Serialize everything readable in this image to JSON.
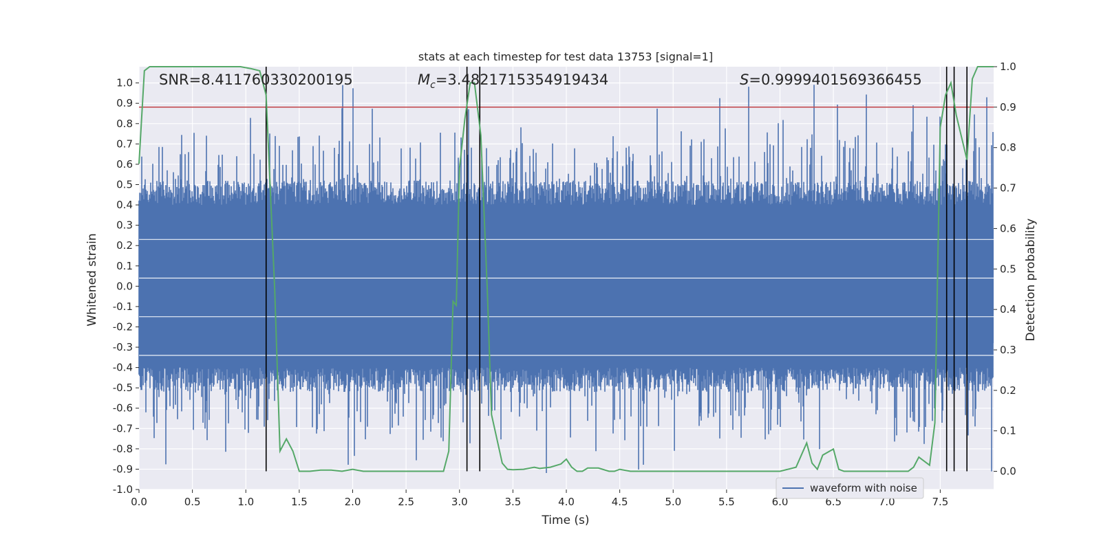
{
  "chart_data": {
    "type": "line",
    "title": "stats at each timestep for test data 13753 [signal=1]",
    "xlabel": "Time (s)",
    "ylabel_left": "Whitened strain",
    "ylabel_right": "Detection probability",
    "xlim": [
      0.0,
      8.0
    ],
    "ylim_left": [
      -1.0,
      1.08
    ],
    "ylim_right": [
      -0.045,
      1.0
    ],
    "x_ticks": [
      "0.0",
      "0.5",
      "1.0",
      "1.5",
      "2.0",
      "2.5",
      "3.0",
      "3.5",
      "4.0",
      "4.5",
      "5.0",
      "5.5",
      "6.0",
      "6.5",
      "7.0",
      "7.5"
    ],
    "y_ticks_left": [
      "1.0",
      "0.9",
      "0.8",
      "0.7",
      "0.6",
      "0.5",
      "0.4",
      "0.3",
      "0.2",
      "0.1",
      "0.0",
      "-0.1",
      "-0.2",
      "-0.3",
      "-0.4",
      "-0.5",
      "-0.6",
      "-0.7",
      "-0.8",
      "-0.9",
      "-1.0"
    ],
    "y_ticks_right": [
      "1.0",
      "0.9",
      "0.8",
      "0.7",
      "0.6",
      "0.5",
      "0.4",
      "0.3",
      "0.2",
      "0.1",
      "0.0"
    ],
    "annotations": {
      "snr": "SNR=8.411760330200195",
      "mc_symbol": "M",
      "mc_sub": "c",
      "mc_value": "=3.4821715354919434",
      "s_symbol": "S",
      "s_value": "=0.9999401569366455"
    },
    "legend": {
      "label": "waveform with noise",
      "location": "lower-right"
    },
    "threshold": {
      "value": 0.9,
      "axis": "right",
      "color": "#c44e52"
    },
    "vertical_lines_x": [
      1.19,
      3.07,
      3.19,
      7.56,
      7.63,
      7.75
    ],
    "series": [
      {
        "name": "waveform with noise",
        "axis": "left",
        "color": "#4c72b0",
        "noise_envelope": {
          "core_band": [
            -0.4,
            0.4
          ],
          "max_spike": 1.0,
          "min_spike": -0.92
        }
      },
      {
        "name": "detection probability",
        "axis": "right",
        "color": "#55a868",
        "x": [
          0.0,
          0.05,
          0.1,
          0.2,
          0.5,
          0.8,
          0.95,
          1.05,
          1.13,
          1.19,
          1.27,
          1.32,
          1.38,
          1.44,
          1.5,
          1.6,
          1.7,
          1.8,
          1.9,
          2.0,
          2.1,
          2.3,
          2.5,
          2.6,
          2.7,
          2.8,
          2.85,
          2.9,
          2.94,
          2.97,
          3.0,
          3.05,
          3.1,
          3.14,
          3.2,
          3.26,
          3.3,
          3.4,
          3.45,
          3.5,
          3.6,
          3.7,
          3.75,
          3.85,
          3.95,
          4.0,
          4.05,
          4.1,
          4.15,
          4.2,
          4.3,
          4.4,
          4.45,
          4.5,
          4.6,
          4.7,
          4.8,
          5.0,
          5.2,
          5.5,
          5.7,
          5.8,
          5.9,
          6.0,
          6.15,
          6.25,
          6.3,
          6.35,
          6.4,
          6.5,
          6.55,
          6.6,
          6.65,
          6.7,
          6.8,
          6.9,
          7.0,
          7.2,
          7.25,
          7.3,
          7.4,
          7.45,
          7.5,
          7.55,
          7.6,
          7.65,
          7.75,
          7.8,
          7.85,
          8.0
        ],
        "y": [
          0.76,
          0.99,
          1.0,
          1.0,
          1.0,
          1.0,
          1.0,
          0.995,
          0.99,
          0.93,
          0.45,
          0.05,
          0.08,
          0.05,
          0.0,
          0.0,
          0.003,
          0.003,
          0.0,
          0.005,
          0.0,
          0.0,
          0.0,
          0.0,
          0.0,
          0.0,
          0.0,
          0.05,
          0.42,
          0.41,
          0.75,
          0.87,
          0.96,
          0.96,
          0.83,
          0.45,
          0.14,
          0.02,
          0.005,
          0.004,
          0.005,
          0.01,
          0.007,
          0.01,
          0.018,
          0.03,
          0.01,
          0.0,
          0.0,
          0.008,
          0.008,
          0.0,
          0.0,
          0.005,
          0.0,
          0.0,
          0.0,
          0.0,
          0.0,
          0.0,
          0.0,
          0.0,
          0.0,
          0.0,
          0.01,
          0.07,
          0.02,
          0.005,
          0.04,
          0.055,
          0.005,
          0.0,
          0.0,
          0.0,
          0.0,
          0.0,
          0.0,
          0.0,
          0.01,
          0.035,
          0.015,
          0.12,
          0.85,
          0.93,
          0.96,
          0.88,
          0.77,
          0.97,
          1.0,
          1.0
        ]
      }
    ]
  }
}
